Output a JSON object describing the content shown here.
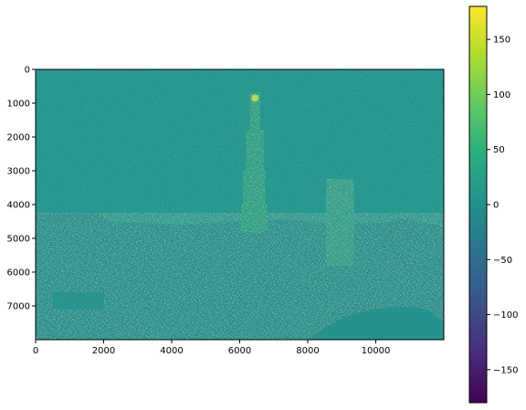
{
  "chart_data": [
    {
      "type": "heatmap",
      "title": "",
      "xlabel": "",
      "ylabel": "",
      "xlim": [
        0,
        12000
      ],
      "ylim": [
        8000,
        0
      ],
      "x_ticks": [
        0,
        2000,
        4000,
        6000,
        8000,
        10000
      ],
      "y_ticks": [
        0,
        1000,
        2000,
        3000,
        4000,
        5000,
        6000,
        7000
      ],
      "y_axis_inverted": true,
      "grid": false,
      "colormap": "viridis",
      "depicts": "horizontal gradient / edge-detection map of a city skyline with a tall tower",
      "colorbar": {
        "range": [
          -180,
          180
        ],
        "ticks": [
          -150,
          -100,
          -50,
          0,
          50,
          100,
          150
        ],
        "labels": [
          "−150",
          "−100",
          "−50",
          "0",
          "50",
          "100",
          "150"
        ],
        "placement": "right"
      }
    }
  ]
}
